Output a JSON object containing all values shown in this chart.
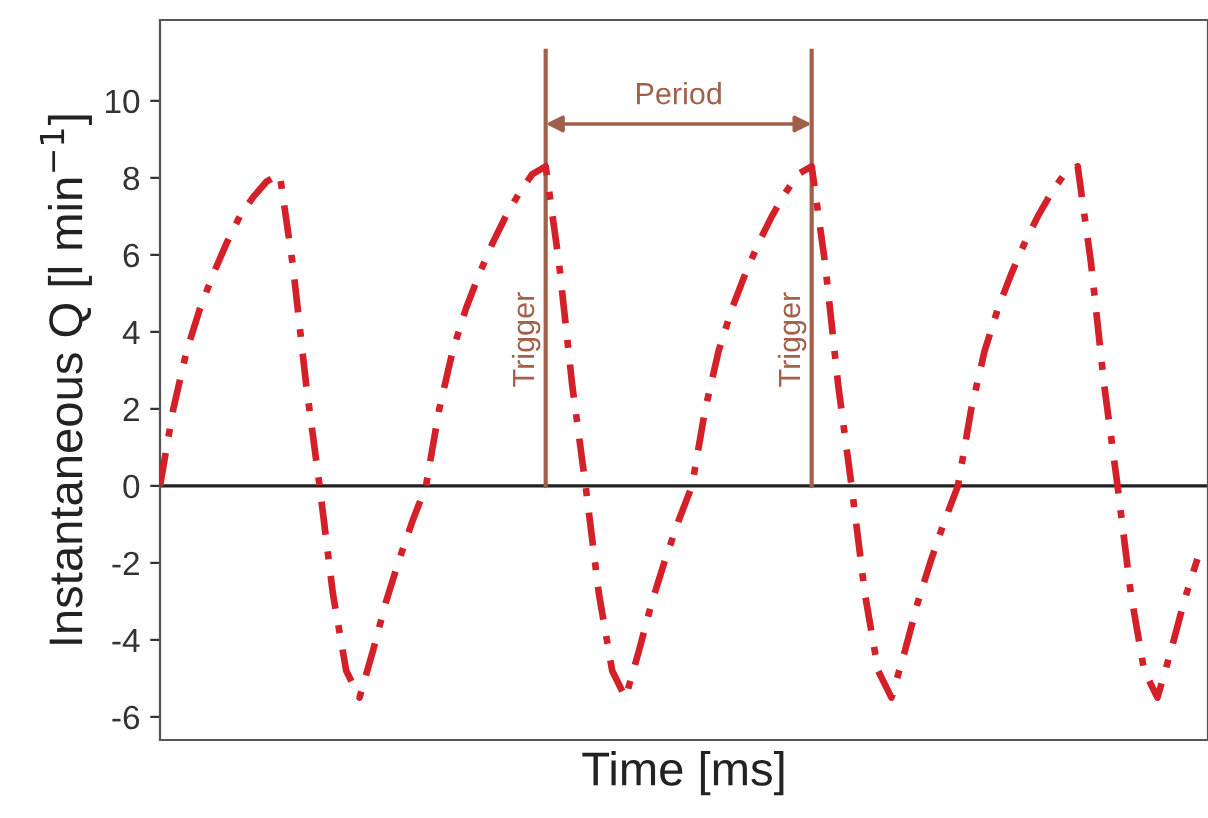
{
  "chart_data": {
    "type": "line",
    "xlabel": "Time [ms]",
    "ylabel": "Instantaneous Q [l min$^{−1}$]",
    "categories": [
      null,
      null,
      null,
      null,
      null,
      null,
      null,
      null,
      null,
      null,
      null,
      null,
      null,
      null,
      null,
      null,
      null,
      null,
      null,
      null,
      null,
      null,
      null,
      null,
      null,
      null,
      null,
      null,
      null,
      null,
      null,
      null,
      null,
      null,
      null,
      null,
      null,
      null,
      null,
      null,
      null,
      null,
      null,
      null,
      null,
      null,
      null,
      null,
      null,
      null,
      null,
      null,
      null,
      null,
      null,
      null,
      null,
      null,
      null,
      null,
      null,
      null,
      null,
      null,
      null,
      null,
      null,
      null,
      null,
      null,
      null,
      null,
      null,
      null,
      null,
      null,
      null,
      null,
      null
    ],
    "series": [
      {
        "color": "#d42028",
        "values": [
          0,
          2.0,
          3.5,
          4.6,
          5.5,
          6.3,
          7.0,
          7.5,
          7.9,
          8.1,
          5.7,
          2.6,
          0,
          -2.8,
          -4.8,
          -5.5,
          -4.3,
          -3.0,
          -1.9,
          -0.9,
          0,
          2.0,
          3.5,
          4.6,
          5.5,
          6.3,
          7.0,
          7.6,
          8.1,
          8.3,
          5.8,
          2.6,
          0,
          -2.8,
          -4.8,
          -5.5,
          -4.3,
          -3.0,
          -1.9,
          -0.9,
          0,
          2.0,
          3.5,
          4.6,
          5.5,
          6.3,
          7.0,
          7.6,
          8.1,
          8.3,
          5.8,
          2.6,
          0,
          -2.8,
          -4.8,
          -5.5,
          -4.3,
          -3.0,
          -1.9,
          -0.9,
          0,
          2.0,
          3.5,
          4.6,
          5.5,
          6.3,
          7.0,
          7.6,
          8.1,
          8.3,
          5.8,
          2.6,
          0,
          -2.8,
          -4.8,
          -5.5,
          -4.3,
          -3.0,
          -1.9
        ]
      }
    ],
    "line_style": "dashdot",
    "marker": "none",
    "grid": false,
    "legend": false,
    "tick_labels": "y",
    "ylim": [
      -6.6,
      12.1
    ],
    "yticks": [
      -6,
      -4,
      -2,
      0,
      2,
      4,
      6,
      8,
      10
    ],
    "ref_lines": [
      {
        "axis": "y",
        "value": 0,
        "color": "#222222"
      }
    ],
    "annotations": [
      "Trigger",
      "Period",
      "Trigger"
    ]
  }
}
